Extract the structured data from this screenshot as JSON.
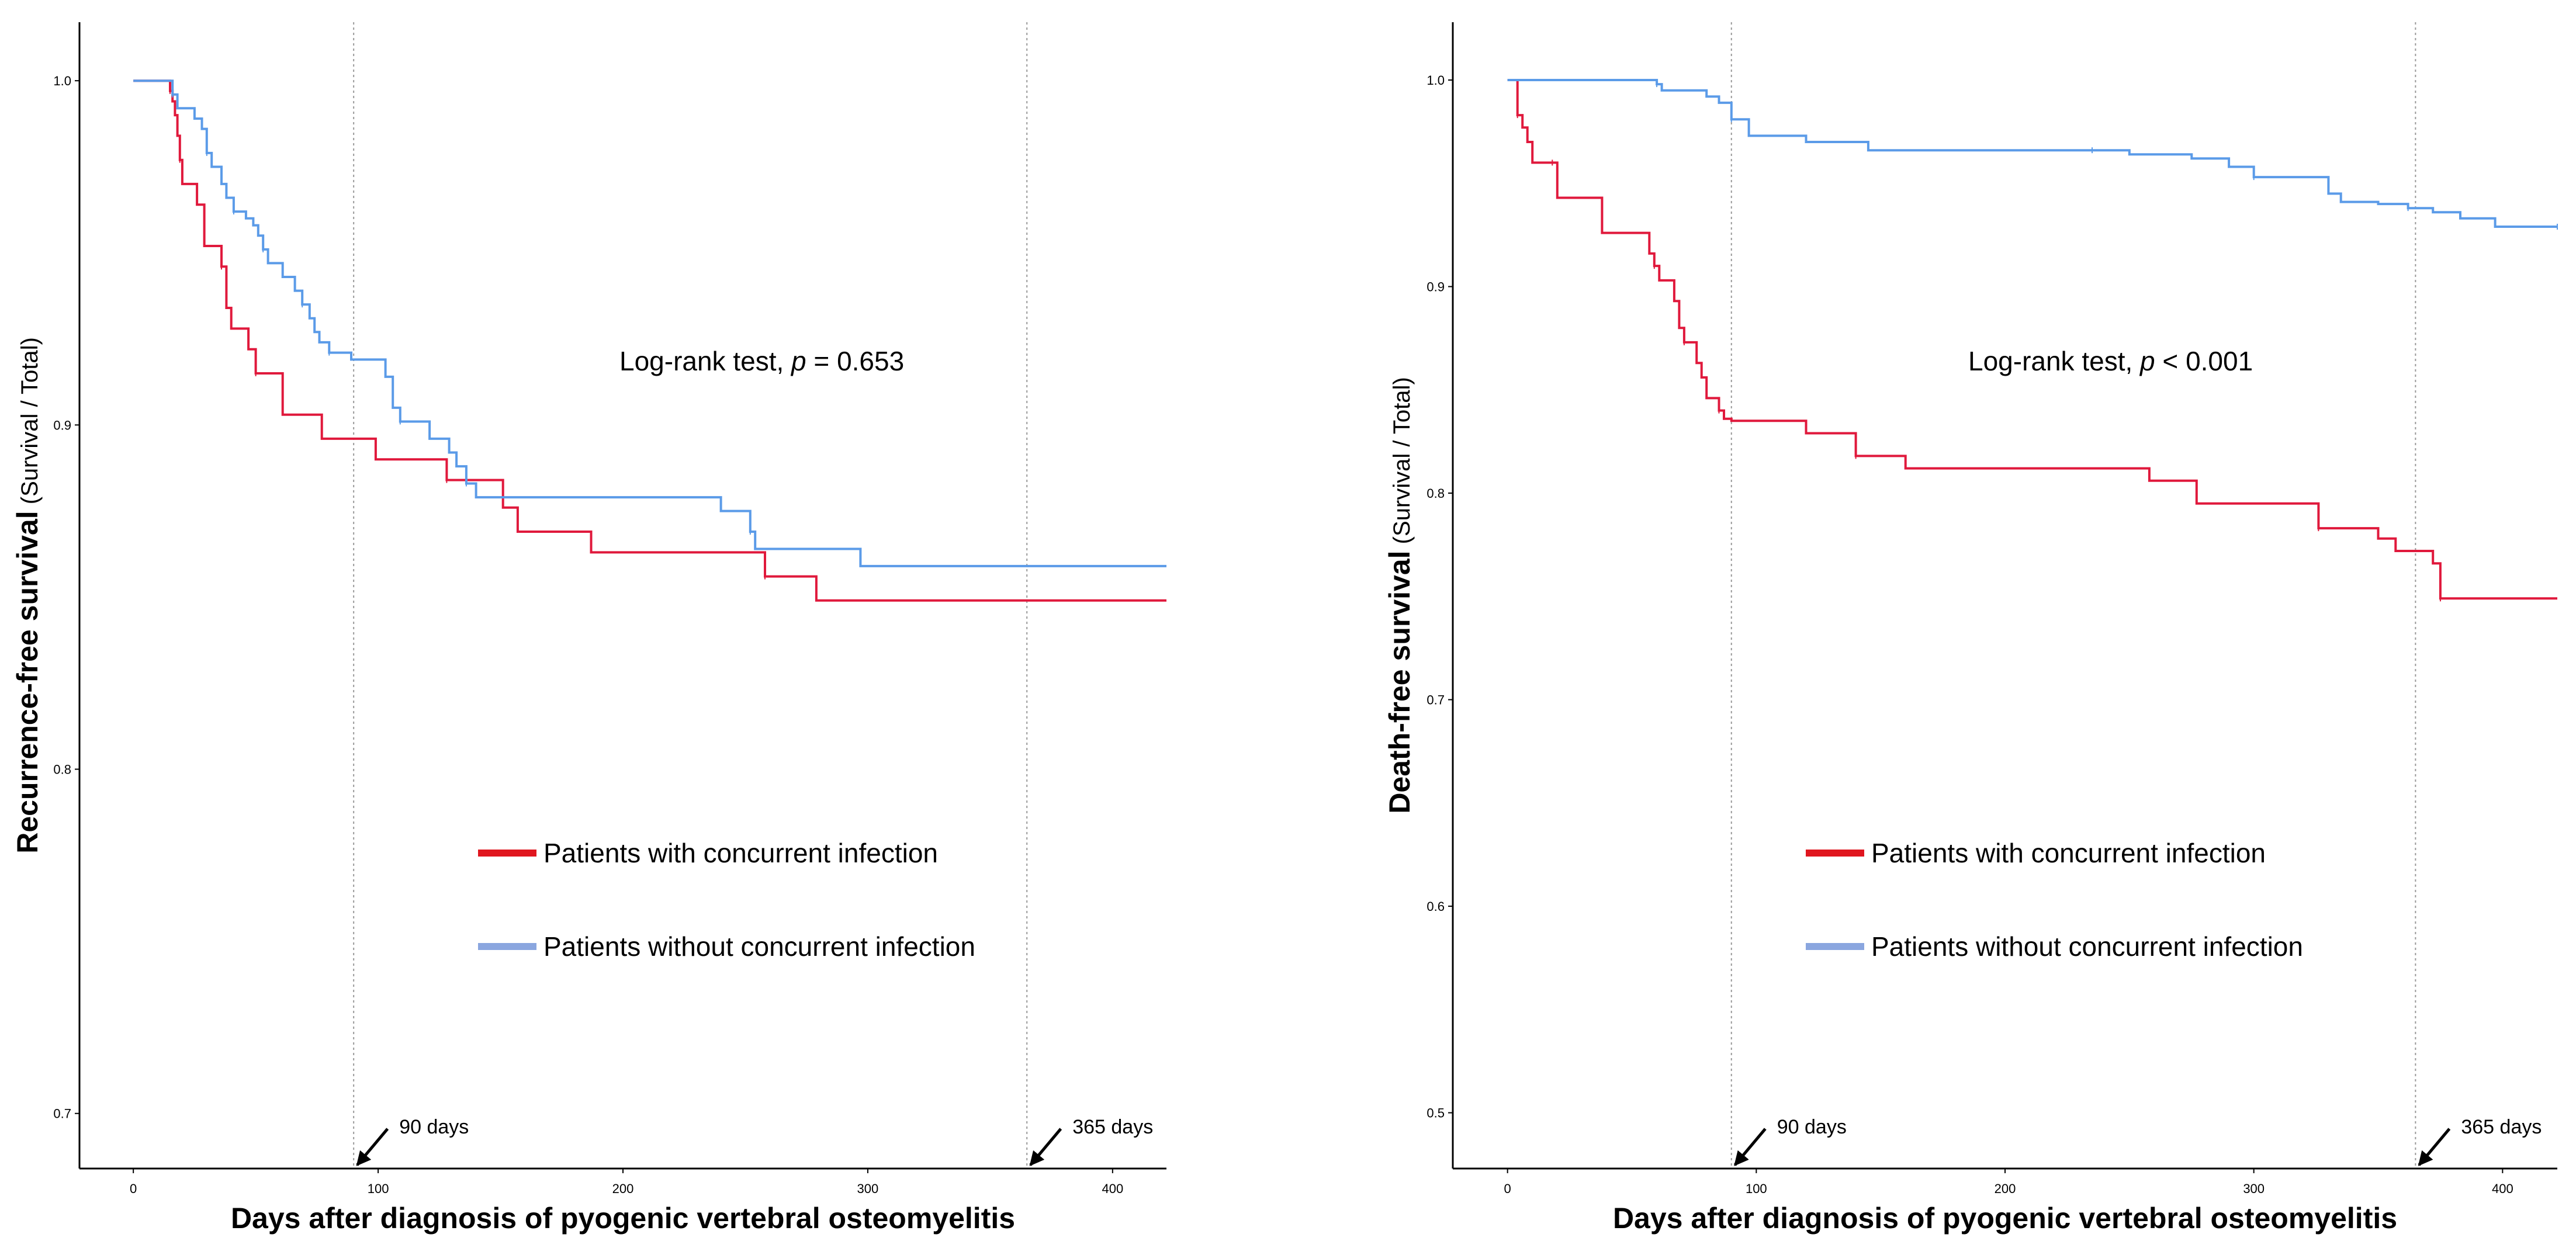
{
  "chart_data": [
    {
      "type": "line",
      "step": true,
      "xlabel": "Days after diagnosis of pyogenic vertebral osteomyelitis",
      "ylabel_main": "Recurrence-free survival",
      "ylabel_sub": "(Survival / Total)",
      "xlim": [
        -22,
        422
      ],
      "ylim": [
        0.684,
        1.017
      ],
      "x_ticks": [
        0,
        100,
        200,
        300,
        400
      ],
      "y_ticks": [
        0.7,
        0.8,
        0.9,
        1.0
      ],
      "x_tick_labels": [
        "0",
        "100",
        "200",
        "300",
        "400"
      ],
      "y_tick_labels": [
        "0.7",
        "0.8",
        "0.9",
        "1.0"
      ],
      "grid": false,
      "reference_lines": [
        {
          "x": 90,
          "label": "90 days"
        },
        {
          "x": 365,
          "label": "365 days"
        }
      ],
      "annotation": {
        "prefix": "Log-rank test, ",
        "italic": "p",
        "suffix": " = 0.653"
      },
      "legend_position": "center",
      "series": [
        {
          "name": "Patients with concurrent infection",
          "color": "#e0193c",
          "legend_color": "#e0161f",
          "points": [
            [
              0,
              1.0
            ],
            [
              14,
              1.0
            ],
            [
              15,
              0.997
            ],
            [
              16,
              0.994
            ],
            [
              17,
              0.99
            ],
            [
              18,
              0.984
            ],
            [
              19,
              0.977
            ],
            [
              20,
              0.97
            ],
            [
              26,
              0.964
            ],
            [
              29,
              0.952
            ],
            [
              36,
              0.946
            ],
            [
              38,
              0.934
            ],
            [
              40,
              0.928
            ],
            [
              47,
              0.922
            ],
            [
              50,
              0.915
            ],
            [
              61,
              0.903
            ],
            [
              77,
              0.896
            ],
            [
              99,
              0.89
            ],
            [
              128,
              0.884
            ],
            [
              151,
              0.876
            ],
            [
              157,
              0.869
            ],
            [
              187,
              0.863
            ],
            [
              258,
              0.856
            ],
            [
              279,
              0.849
            ],
            [
              422,
              0.849
            ]
          ]
        },
        {
          "name": "Patients without concurrent infection",
          "color": "#5b9be8",
          "legend_color": "#8aa6df",
          "points": [
            [
              0,
              1.0
            ],
            [
              15,
              1.0
            ],
            [
              16,
              0.996
            ],
            [
              18,
              0.992
            ],
            [
              25,
              0.989
            ],
            [
              28,
              0.986
            ],
            [
              30,
              0.979
            ],
            [
              32,
              0.975
            ],
            [
              36,
              0.97
            ],
            [
              38,
              0.966
            ],
            [
              41,
              0.962
            ],
            [
              46,
              0.96
            ],
            [
              49,
              0.958
            ],
            [
              51,
              0.955
            ],
            [
              53,
              0.951
            ],
            [
              55,
              0.947
            ],
            [
              61,
              0.943
            ],
            [
              66,
              0.939
            ],
            [
              69,
              0.935
            ],
            [
              72,
              0.931
            ],
            [
              74,
              0.927
            ],
            [
              76,
              0.924
            ],
            [
              80,
              0.921
            ],
            [
              89,
              0.919
            ],
            [
              103,
              0.914
            ],
            [
              106,
              0.905
            ],
            [
              109,
              0.901
            ],
            [
              121,
              0.896
            ],
            [
              129,
              0.892
            ],
            [
              132,
              0.888
            ],
            [
              136,
              0.883
            ],
            [
              140,
              0.879
            ],
            [
              151,
              0.879
            ],
            [
              240,
              0.875
            ],
            [
              252,
              0.869
            ],
            [
              254,
              0.864
            ],
            [
              297,
              0.859
            ],
            [
              422,
              0.859
            ]
          ]
        }
      ]
    },
    {
      "type": "line",
      "step": true,
      "xlabel": "Days after diagnosis of pyogenic vertebral osteomyelitis",
      "ylabel_main": "Death-free survival",
      "ylabel_sub": "(Survival / Total)",
      "xlim": [
        -22,
        422
      ],
      "ylim": [
        0.473,
        1.028
      ],
      "x_ticks": [
        0,
        100,
        200,
        300,
        400
      ],
      "y_ticks": [
        0.5,
        0.6,
        0.7,
        0.8,
        0.9,
        1.0
      ],
      "x_tick_labels": [
        "0",
        "100",
        "200",
        "300",
        "400"
      ],
      "y_tick_labels": [
        "0.5",
        "0.6",
        "0.7",
        "0.8",
        "0.9",
        "1.0"
      ],
      "grid": false,
      "reference_lines": [
        {
          "x": 90,
          "label": "90 days"
        },
        {
          "x": 365,
          "label": "365 days"
        }
      ],
      "annotation": {
        "prefix": "Log-rank test, ",
        "italic": "p",
        "suffix": " < 0.001"
      },
      "legend_position": "center",
      "series": [
        {
          "name": "Patients with concurrent infection",
          "color": "#e0193c",
          "legend_color": "#e0161f",
          "points": [
            [
              0,
              1.0
            ],
            [
              3,
              1.0
            ],
            [
              4,
              0.983
            ],
            [
              6,
              0.977
            ],
            [
              8,
              0.97
            ],
            [
              10,
              0.96
            ],
            [
              18,
              0.96
            ],
            [
              20,
              0.943
            ],
            [
              38,
              0.926
            ],
            [
              57,
              0.916
            ],
            [
              59,
              0.91
            ],
            [
              61,
              0.903
            ],
            [
              67,
              0.893
            ],
            [
              69,
              0.88
            ],
            [
              71,
              0.873
            ],
            [
              76,
              0.863
            ],
            [
              78,
              0.856
            ],
            [
              80,
              0.846
            ],
            [
              85,
              0.84
            ],
            [
              87,
              0.836
            ],
            [
              90,
              0.835
            ],
            [
              120,
              0.829
            ],
            [
              140,
              0.818
            ],
            [
              160,
              0.812
            ],
            [
              258,
              0.806
            ],
            [
              277,
              0.795
            ],
            [
              326,
              0.783
            ],
            [
              350,
              0.778
            ],
            [
              357,
              0.772
            ],
            [
              372,
              0.766
            ],
            [
              375,
              0.749
            ],
            [
              422,
              0.749
            ]
          ]
        },
        {
          "name": "Patients without concurrent infection",
          "color": "#5b9be8",
          "legend_color": "#8aa6df",
          "points": [
            [
              0,
              1.0
            ],
            [
              57,
              1.0
            ],
            [
              60,
              0.998
            ],
            [
              62,
              0.995
            ],
            [
              80,
              0.992
            ],
            [
              85,
              0.989
            ],
            [
              90,
              0.981
            ],
            [
              97,
              0.973
            ],
            [
              120,
              0.97
            ],
            [
              145,
              0.966
            ],
            [
              235,
              0.966
            ],
            [
              250,
              0.964
            ],
            [
              275,
              0.962
            ],
            [
              290,
              0.958
            ],
            [
              300,
              0.953
            ],
            [
              330,
              0.945
            ],
            [
              335,
              0.941
            ],
            [
              350,
              0.94
            ],
            [
              362,
              0.938
            ],
            [
              372,
              0.936
            ],
            [
              383,
              0.933
            ],
            [
              397,
              0.929
            ],
            [
              422,
              0.929
            ]
          ]
        }
      ]
    }
  ]
}
